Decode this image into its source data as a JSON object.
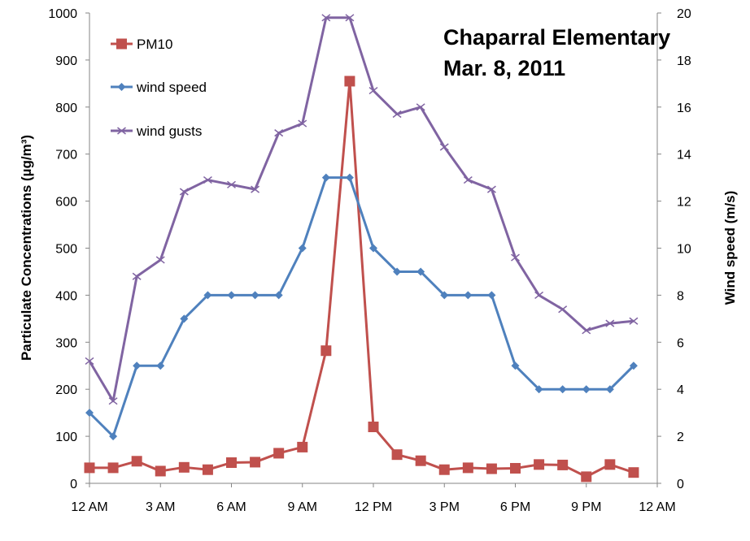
{
  "chart_data": {
    "type": "line",
    "title": [
      "Chaparral Elementary",
      "Mar. 8, 2011"
    ],
    "ylabel_left": "Particulate Concentrations (µg/m³)",
    "ylabel_right": "Wind speed (m/s)",
    "xlabel": "",
    "x_hours": [
      0,
      24
    ],
    "x_ticks": [
      {
        "hour": 0,
        "label": "12 AM"
      },
      {
        "hour": 3,
        "label": "3 AM"
      },
      {
        "hour": 6,
        "label": "6 AM"
      },
      {
        "hour": 9,
        "label": "9 AM"
      },
      {
        "hour": 12,
        "label": "12 PM"
      },
      {
        "hour": 15,
        "label": "3 PM"
      },
      {
        "hour": 18,
        "label": "6 PM"
      },
      {
        "hour": 21,
        "label": "9 PM"
      },
      {
        "hour": 24,
        "label": "12 AM"
      }
    ],
    "ylim_left": [
      0,
      1000
    ],
    "yticks_left": [
      0,
      100,
      200,
      300,
      400,
      500,
      600,
      700,
      800,
      900,
      1000
    ],
    "ylim_right": [
      0,
      20
    ],
    "yticks_right": [
      0,
      2,
      4,
      6,
      8,
      10,
      12,
      14,
      16,
      18,
      20
    ],
    "grid": false,
    "legend_position": "top-left",
    "series": [
      {
        "name": "PM10",
        "axis": "left",
        "color": "#C0504D",
        "marker": "square",
        "hours": [
          0,
          1,
          2,
          3,
          4,
          5,
          6,
          7,
          8,
          9,
          10,
          11,
          12,
          13,
          14,
          15,
          16,
          17,
          18,
          19,
          20,
          21,
          22,
          23
        ],
        "values": [
          33,
          33,
          47,
          26,
          34,
          29,
          44,
          45,
          64,
          77,
          282,
          855,
          120,
          61,
          48,
          29,
          33,
          31,
          32,
          40,
          39,
          14,
          40,
          23
        ]
      },
      {
        "name": "wind speed",
        "axis": "right",
        "color": "#4F81BD",
        "marker": "diamond",
        "hours": [
          0,
          1,
          2,
          3,
          4,
          5,
          6,
          7,
          8,
          9,
          10,
          11,
          12,
          13,
          14,
          15,
          16,
          17,
          18,
          19,
          20,
          21,
          22,
          23
        ],
        "values": [
          3,
          2,
          5,
          5,
          7,
          8,
          8,
          8,
          8,
          10,
          13,
          13,
          10,
          9,
          9,
          8,
          8,
          8,
          5,
          4,
          4,
          4,
          4,
          5
        ]
      },
      {
        "name": "wind gusts",
        "axis": "right",
        "color": "#8064A2",
        "marker": "x",
        "hours": [
          0,
          1,
          2,
          3,
          4,
          5,
          6,
          7,
          8,
          9,
          10,
          11,
          12,
          13,
          14,
          15,
          16,
          17,
          18,
          19,
          20,
          21,
          22,
          23
        ],
        "values": [
          5.2,
          3.5,
          8.8,
          9.5,
          12.4,
          12.9,
          12.7,
          12.5,
          14.9,
          15.3,
          19.8,
          19.8,
          16.7,
          15.7,
          16.0,
          14.3,
          12.9,
          12.5,
          9.6,
          8.0,
          7.4,
          6.5,
          6.8,
          6.9
        ]
      }
    ]
  }
}
